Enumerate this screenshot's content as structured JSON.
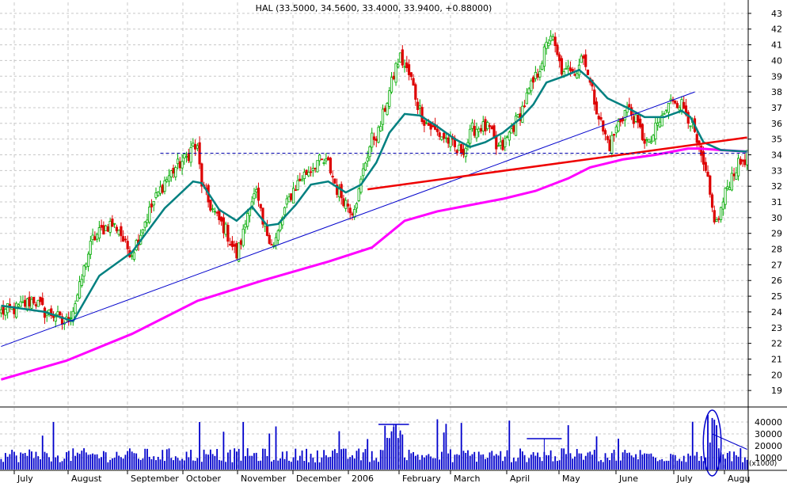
{
  "chart_data": [
    {
      "type": "candlestick",
      "title": "HAL (33.5000, 34.5600, 33.4000, 33.9400, +0.88000)",
      "price_axis": {
        "ticks": [
          "19",
          "20",
          "21",
          "22",
          "23",
          "24",
          "25",
          "26",
          "27",
          "28",
          "29",
          "30",
          "31",
          "32",
          "33",
          "34",
          "35",
          "36",
          "37",
          "38",
          "39",
          "40",
          "41",
          "42",
          "43"
        ],
        "ylim": [
          18,
          43.7
        ]
      },
      "time_axis": {
        "labels": [
          "July",
          "August",
          "September",
          "October",
          "November",
          "December",
          "2006",
          "February",
          "March",
          "April",
          "May",
          "June",
          "July",
          "Augu"
        ]
      },
      "anchors": [
        [
          0,
          24.0
        ],
        [
          7,
          24.2
        ],
        [
          15,
          24.8
        ],
        [
          20,
          24.0
        ],
        [
          25,
          23.8
        ],
        [
          28,
          23.3
        ],
        [
          30,
          23.4
        ],
        [
          33,
          24.2
        ],
        [
          36,
          25.5
        ],
        [
          39,
          27.3
        ],
        [
          42,
          28.6
        ],
        [
          46,
          29.2
        ],
        [
          50,
          29.6
        ],
        [
          54,
          29.3
        ],
        [
          57,
          28.2
        ],
        [
          60,
          27.8
        ],
        [
          63,
          28.7
        ],
        [
          66,
          29.8
        ],
        [
          70,
          31.0
        ],
        [
          75,
          32.3
        ],
        [
          80,
          33.2
        ],
        [
          85,
          33.8
        ],
        [
          88,
          34.6
        ],
        [
          90,
          34.3
        ],
        [
          92,
          32.2
        ],
        [
          95,
          31.0
        ],
        [
          99,
          30.0
        ],
        [
          103,
          29.2
        ],
        [
          106,
          28.2
        ],
        [
          108,
          27.6
        ],
        [
          111,
          29.0
        ],
        [
          114,
          31.0
        ],
        [
          117,
          31.5
        ],
        [
          120,
          29.5
        ],
        [
          123,
          28.8
        ],
        [
          125,
          28.2
        ],
        [
          127,
          29.0
        ],
        [
          130,
          30.5
        ],
        [
          134,
          31.8
        ],
        [
          138,
          32.6
        ],
        [
          141,
          33.0
        ],
        [
          145,
          33.6
        ],
        [
          150,
          33.4
        ],
        [
          154,
          31.8
        ],
        [
          158,
          31.0
        ],
        [
          161,
          30.5
        ],
        [
          164,
          31.6
        ],
        [
          167,
          33.6
        ],
        [
          170,
          35.0
        ],
        [
          173,
          35.4
        ],
        [
          176,
          37.0
        ],
        [
          179,
          38.5
        ],
        [
          181,
          39.6
        ],
        [
          183,
          40.2
        ],
        [
          185,
          39.6
        ],
        [
          188,
          38.8
        ],
        [
          191,
          37.2
        ],
        [
          194,
          36.2
        ],
        [
          198,
          35.6
        ],
        [
          202,
          35.2
        ],
        [
          206,
          34.8
        ],
        [
          209,
          34.2
        ],
        [
          213,
          34.5
        ],
        [
          216,
          35.6
        ],
        [
          220,
          35.8
        ],
        [
          224,
          35.6
        ],
        [
          227,
          34.4
        ],
        [
          230,
          34.5
        ],
        [
          234,
          35.6
        ],
        [
          238,
          36.6
        ],
        [
          242,
          38.0
        ],
        [
          246,
          39.2
        ],
        [
          249,
          40.5
        ],
        [
          252,
          41.7
        ],
        [
          255,
          40.2
        ],
        [
          258,
          39.0
        ],
        [
          261,
          39.6
        ],
        [
          264,
          39.4
        ],
        [
          266,
          40.3
        ],
        [
          268,
          40.0
        ],
        [
          270,
          38.5
        ],
        [
          273,
          37.0
        ],
        [
          276,
          35.5
        ],
        [
          279,
          34.6
        ],
        [
          283,
          36.0
        ],
        [
          287,
          37.0
        ],
        [
          290,
          36.4
        ],
        [
          294,
          35.2
        ],
        [
          297,
          34.6
        ],
        [
          300,
          35.6
        ],
        [
          304,
          36.6
        ],
        [
          308,
          37.6
        ],
        [
          312,
          37.2
        ],
        [
          316,
          36.2
        ],
        [
          320,
          34.2
        ],
        [
          322,
          33.2
        ],
        [
          324,
          32.2
        ],
        [
          326,
          30.5
        ],
        [
          328,
          29.6
        ],
        [
          330,
          30.5
        ],
        [
          333,
          32.0
        ],
        [
          336,
          33.0
        ],
        [
          339,
          33.5
        ],
        [
          342,
          33.9
        ]
      ],
      "moving_average_short": [
        [
          0,
          24.4
        ],
        [
          20,
          24.0
        ],
        [
          33,
          23.4
        ],
        [
          45,
          26.3
        ],
        [
          60,
          27.8
        ],
        [
          75,
          30.6
        ],
        [
          88,
          32.3
        ],
        [
          92,
          32.2
        ],
        [
          100,
          30.5
        ],
        [
          108,
          29.8
        ],
        [
          115,
          30.7
        ],
        [
          122,
          29.5
        ],
        [
          127,
          29.6
        ],
        [
          135,
          30.8
        ],
        [
          142,
          32.1
        ],
        [
          150,
          32.3
        ],
        [
          158,
          31.6
        ],
        [
          165,
          32.1
        ],
        [
          172,
          33.5
        ],
        [
          178,
          35.4
        ],
        [
          185,
          36.6
        ],
        [
          192,
          36.5
        ],
        [
          200,
          35.8
        ],
        [
          208,
          35.0
        ],
        [
          215,
          34.5
        ],
        [
          222,
          34.8
        ],
        [
          230,
          35.4
        ],
        [
          238,
          36.3
        ],
        [
          244,
          37.2
        ],
        [
          250,
          38.6
        ],
        [
          258,
          39.0
        ],
        [
          265,
          39.4
        ],
        [
          270,
          38.8
        ],
        [
          278,
          37.6
        ],
        [
          287,
          37.0
        ],
        [
          295,
          36.4
        ],
        [
          304,
          36.4
        ],
        [
          312,
          36.8
        ],
        [
          316,
          36.4
        ],
        [
          322,
          34.8
        ],
        [
          330,
          34.3
        ],
        [
          342,
          34.2
        ]
      ],
      "moving_average_long": [
        [
          0,
          19.7
        ],
        [
          30,
          20.9
        ],
        [
          60,
          22.6
        ],
        [
          90,
          24.7
        ],
        [
          120,
          26.0
        ],
        [
          150,
          27.2
        ],
        [
          170,
          28.1
        ],
        [
          185,
          29.8
        ],
        [
          200,
          30.4
        ],
        [
          215,
          30.8
        ],
        [
          230,
          31.2
        ],
        [
          245,
          31.7
        ],
        [
          260,
          32.5
        ],
        [
          270,
          33.2
        ],
        [
          285,
          33.7
        ],
        [
          300,
          34.0
        ],
        [
          315,
          34.4
        ],
        [
          320,
          34.4
        ],
        [
          330,
          34.3
        ],
        [
          342,
          34.2
        ]
      ],
      "trendlines": [
        {
          "name": "rising-support",
          "color": "#0000cc",
          "x": [
            0,
            318
          ],
          "y": [
            21.8,
            38.0
          ]
        },
        {
          "name": "neckline",
          "color": "#ee0000",
          "x": [
            168,
            342
          ],
          "y": [
            31.8,
            35.1
          ]
        },
        {
          "name": "resistance-level",
          "color": "#0000aa",
          "dashed": true,
          "x": [
            73,
            342
          ],
          "y": [
            34.1,
            34.1
          ]
        }
      ],
      "grid": true
    },
    {
      "type": "bar",
      "title": "Volume",
      "unit_label": "(x1000)",
      "ticks": [
        "10000",
        "20000",
        "30000",
        "40000"
      ],
      "ylim": [
        0,
        52000
      ],
      "annotations": [
        {
          "type": "level",
          "x": [
            173,
            187
          ],
          "y": 38000
        },
        {
          "type": "level",
          "x": [
            241,
            257
          ],
          "y": 26000
        },
        {
          "type": "ellipse",
          "x": [
            323,
            329
          ],
          "y": [
            0,
            50000
          ]
        },
        {
          "type": "down-trendline",
          "x": [
            326,
            342
          ],
          "y": [
            30000,
            17000
          ]
        }
      ]
    }
  ]
}
